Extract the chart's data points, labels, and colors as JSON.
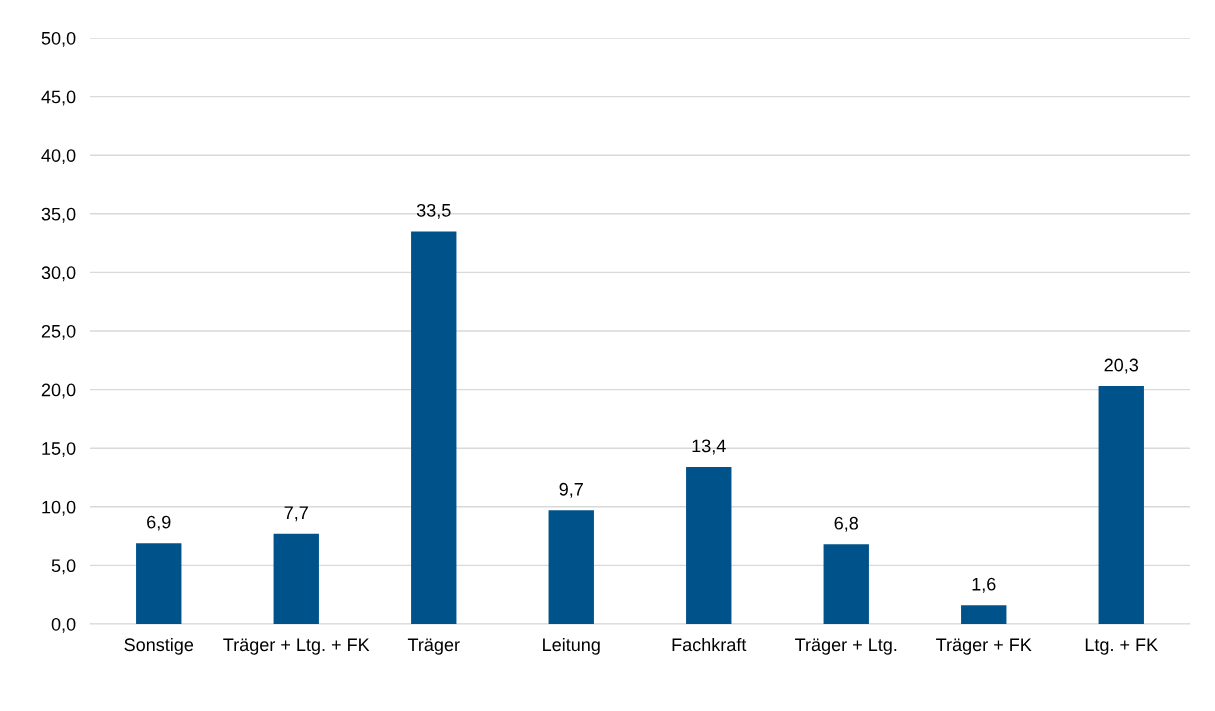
{
  "chart_data": {
    "type": "bar",
    "categories": [
      "Sonstige",
      "Träger + Ltg. + FK",
      "Träger",
      "Leitung",
      "Fachkraft",
      "Träger + Ltg.",
      "Träger + FK",
      "Ltg. + FK"
    ],
    "values": [
      6.9,
      7.7,
      33.5,
      9.7,
      13.4,
      6.8,
      1.6,
      20.3
    ],
    "value_labels": [
      "6,9",
      "7,7",
      "33,5",
      "9,7",
      "13,4",
      "6,8",
      "1,6",
      "20,3"
    ],
    "color": "#00538a",
    "ylim": [
      0,
      50
    ],
    "yticks": [
      {
        "value": 0,
        "label": "0,0"
      },
      {
        "value": 5,
        "label": "5,0"
      },
      {
        "value": 10,
        "label": "10,0"
      },
      {
        "value": 15,
        "label": "15,0"
      },
      {
        "value": 20,
        "label": "20,0"
      },
      {
        "value": 25,
        "label": "25,0"
      },
      {
        "value": 30,
        "label": "30,0"
      },
      {
        "value": 35,
        "label": "35,0"
      },
      {
        "value": 40,
        "label": "40,0"
      },
      {
        "value": 45,
        "label": "45,0"
      },
      {
        "value": 50,
        "label": "50,0"
      }
    ],
    "grid": "y",
    "legend": false
  }
}
